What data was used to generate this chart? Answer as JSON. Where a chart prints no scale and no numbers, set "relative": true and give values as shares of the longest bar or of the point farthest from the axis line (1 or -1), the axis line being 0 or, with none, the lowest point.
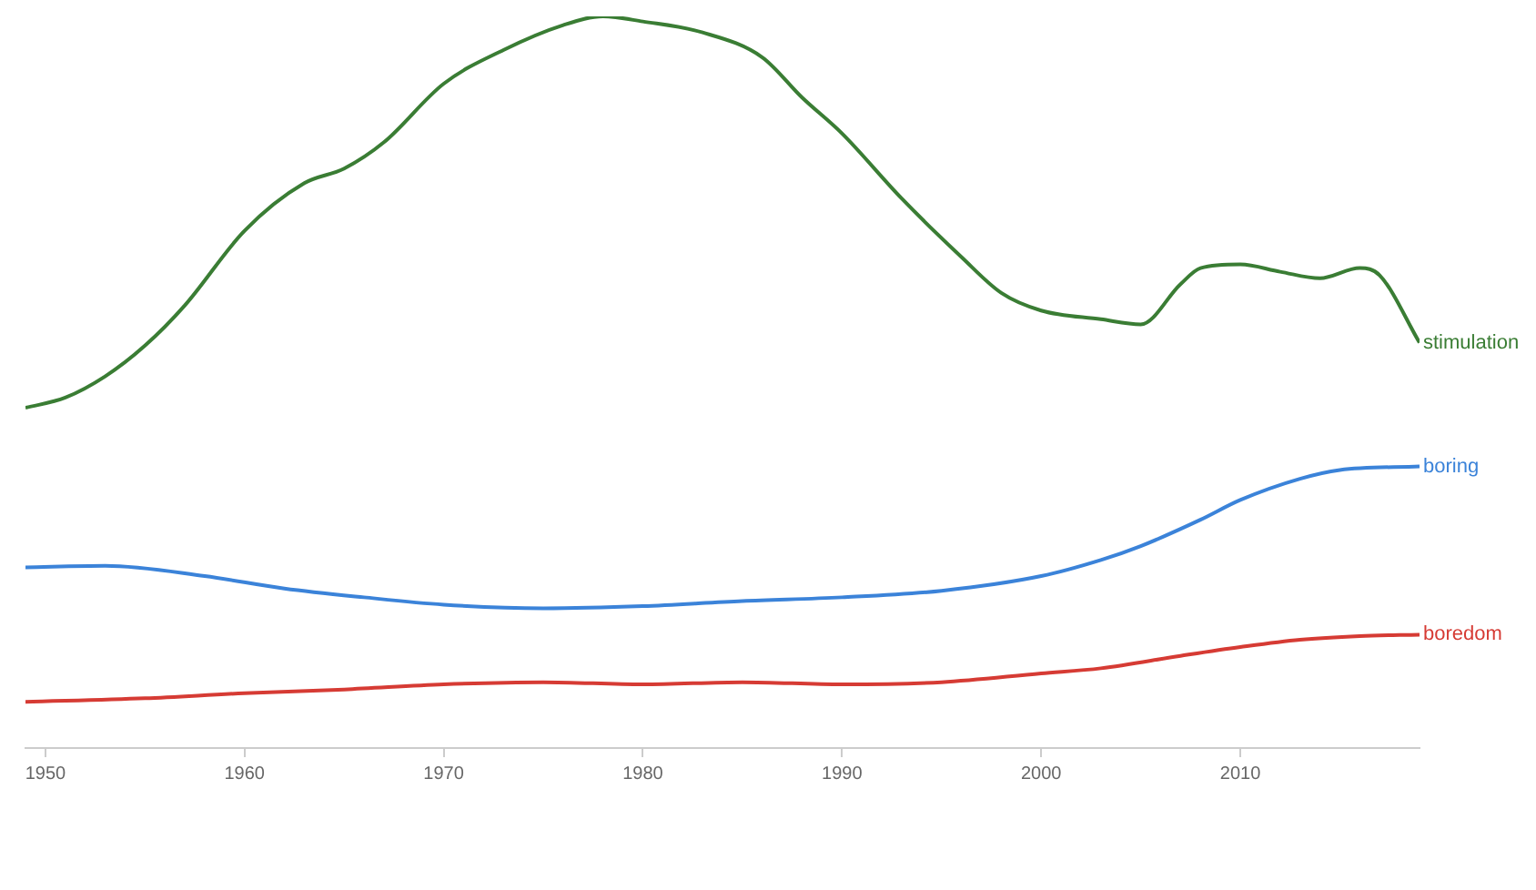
{
  "chart_data": {
    "type": "line",
    "relative": true,
    "xlim": [
      1949,
      2019
    ],
    "xticks": [
      1950,
      1960,
      1970,
      1980,
      1990,
      2000,
      2010
    ],
    "tick_labels": "x",
    "legend": false,
    "marker": "none",
    "line_style": "solid",
    "series": [
      {
        "name": "stimulation",
        "color": "#3a7d34",
        "x": [
          1949,
          1951,
          1953,
          1955,
          1957,
          1960,
          1963,
          1965,
          1967,
          1970,
          1973,
          1976,
          1978,
          1980,
          1983,
          1986,
          1988,
          1990,
          1993,
          1996,
          1998,
          2000,
          2003,
          2005,
          2007,
          2008,
          2010,
          2012,
          2014,
          2016,
          2017,
          2019
        ],
        "values": [
          0.465,
          0.479,
          0.508,
          0.55,
          0.605,
          0.707,
          0.772,
          0.792,
          0.828,
          0.908,
          0.954,
          0.988,
          1,
          0.993,
          0.978,
          0.944,
          0.889,
          0.84,
          0.751,
          0.671,
          0.622,
          0.598,
          0.586,
          0.579,
          0.634,
          0.656,
          0.661,
          0.651,
          0.642,
          0.656,
          0.646,
          0.554
        ]
      },
      {
        "name": "boring",
        "color": "#3b83d9",
        "x": [
          1949,
          1953,
          1958,
          1962,
          1966,
          1970,
          1975,
          1980,
          1985,
          1990,
          1995,
          2000,
          2003,
          2005,
          2008,
          2010,
          2013,
          2015,
          2019
        ],
        "values": [
          0.247,
          0.249,
          0.235,
          0.218,
          0.206,
          0.196,
          0.191,
          0.194,
          0.201,
          0.206,
          0.215,
          0.235,
          0.257,
          0.276,
          0.312,
          0.339,
          0.368,
          0.38,
          0.385
        ]
      },
      {
        "name": "boredom",
        "color": "#d63b34",
        "x": [
          1949,
          1955,
          1960,
          1965,
          1970,
          1975,
          1980,
          1985,
          1990,
          1995,
          2000,
          2003,
          2007,
          2010,
          2013,
          2016,
          2019
        ],
        "values": [
          0.063,
          0.068,
          0.075,
          0.08,
          0.087,
          0.09,
          0.087,
          0.09,
          0.087,
          0.09,
          0.102,
          0.109,
          0.126,
          0.138,
          0.148,
          0.153,
          0.155
        ]
      }
    ]
  }
}
